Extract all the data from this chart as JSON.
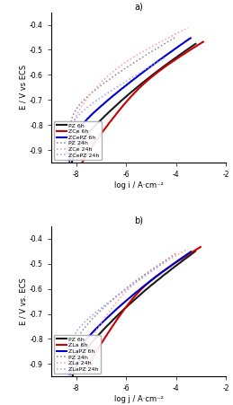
{
  "title_a": "a)",
  "title_b": "b)",
  "xlim": [
    -9,
    -2
  ],
  "ylim_a": [
    -0.95,
    -0.35
  ],
  "ylim_b": [
    -0.95,
    -0.35
  ],
  "ylabel_a": "E / V vs ECS",
  "ylabel_b": "E / V vs. ECS",
  "xlabel_a": "log i / A·cm⁻²",
  "xlabel_b": "log j / A·cm⁻²",
  "yticks": [
    -0.9,
    -0.8,
    -0.7,
    -0.6,
    -0.5,
    -0.4
  ],
  "xticks": [
    -8,
    -6,
    -4,
    -2
  ],
  "legend_a": [
    "PZ 6h",
    "ZCe 6h",
    "ZCePZ 6h",
    "PZ 24h",
    "ZCe 24h",
    "ZCePZ 24h"
  ],
  "legend_b": [
    "PZ 6h",
    "ZLa 6h",
    "ZLaPZ 6h",
    "PZ 24h",
    "ZLa 24h",
    "ZLaPZ 24h"
  ],
  "colors_solid": [
    "#1a1a1a",
    "#cc0000",
    "#0000cc"
  ],
  "colors_dotted": [
    "#888888",
    "#ff9999",
    "#9999ff"
  ]
}
